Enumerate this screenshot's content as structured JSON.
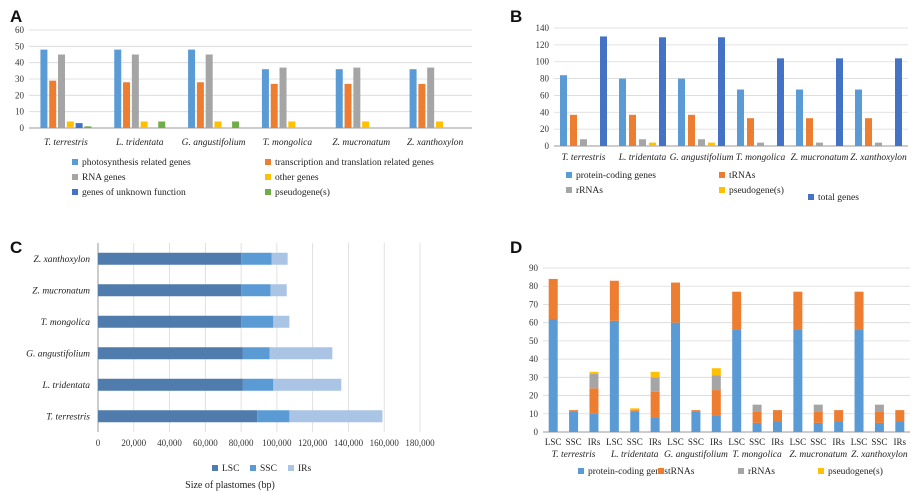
{
  "colors": {
    "blue": "#5b9bd5",
    "orange": "#ed7d31",
    "gray": "#a5a5a5",
    "yellow": "#ffc000",
    "darkblue": "#4472c4",
    "green": "#70ad47",
    "lsc": "#4f7cac",
    "ssc": "#5b9bd5",
    "irs": "#a9c4e4",
    "grid": "#d9d9d9"
  },
  "chart_data": [
    {
      "panel": "A",
      "type": "bar",
      "categories": [
        "T. terrestris",
        "L. tridentata",
        "G. angustifolium",
        "T. mongolica",
        "Z. mucronatum",
        "Z. xanthoxylon"
      ],
      "series": [
        {
          "name": "photosynthesis related genes",
          "color": "#5b9bd5",
          "values": [
            48,
            48,
            48,
            36,
            36,
            36
          ]
        },
        {
          "name": "transcription and translation related genes",
          "color": "#ed7d31",
          "values": [
            29,
            28,
            28,
            27,
            27,
            27
          ]
        },
        {
          "name": "RNA genes",
          "color": "#a5a5a5",
          "values": [
            45,
            45,
            45,
            37,
            37,
            37
          ]
        },
        {
          "name": "other genes",
          "color": "#ffc000",
          "values": [
            4,
            4,
            4,
            4,
            4,
            4
          ]
        },
        {
          "name": "genes of unknown function",
          "color": "#4472c4",
          "values": [
            3,
            0,
            0,
            0,
            0,
            0
          ]
        },
        {
          "name": "pseudogene(s)",
          "color": "#70ad47",
          "values": [
            1,
            4,
            4,
            0,
            0,
            0
          ]
        }
      ],
      "ylim": [
        0,
        60
      ],
      "yticks": [
        "0",
        "10",
        "20",
        "30",
        "40",
        "50",
        "60"
      ],
      "grid": true,
      "legend": "bottom"
    },
    {
      "panel": "B",
      "type": "bar",
      "categories": [
        "T. terrestris",
        "L. tridentata",
        "G. angustifolium",
        "T. mongolica",
        "Z. mucronatum",
        "Z. xanthoxylon"
      ],
      "series": [
        {
          "name": "protein-coding genes",
          "color": "#5b9bd5",
          "values": [
            84,
            80,
            80,
            67,
            67,
            67
          ]
        },
        {
          "name": "tRNAs",
          "color": "#ed7d31",
          "values": [
            37,
            37,
            37,
            33,
            33,
            33
          ]
        },
        {
          "name": "rRNAs",
          "color": "#a5a5a5",
          "values": [
            8,
            8,
            8,
            4,
            4,
            4
          ]
        },
        {
          "name": "pseudogene(s)",
          "color": "#ffc000",
          "values": [
            1,
            4,
            4,
            0,
            0,
            0
          ]
        },
        {
          "name": "total genes",
          "color": "#4472c4",
          "values": [
            130,
            129,
            129,
            104,
            104,
            104
          ]
        }
      ],
      "ylim": [
        0,
        140
      ],
      "yticks": [
        "0",
        "20",
        "40",
        "60",
        "80",
        "100",
        "120",
        "140"
      ],
      "grid": true,
      "legend": "bottom"
    },
    {
      "panel": "C",
      "type": "bar",
      "orientation": "horizontal",
      "stacked": true,
      "categories": [
        "Z. xanthoxylon",
        "Z. mucronatum",
        "T. mongolica",
        "G. angustifolium",
        "L. tridentata",
        "T. terrestris"
      ],
      "series": [
        {
          "name": "LSC",
          "color": "#4f7cac",
          "values": [
            80000,
            80000,
            80000,
            81000,
            81000,
            89000
          ]
        },
        {
          "name": "SSC",
          "color": "#5b9bd5",
          "values": [
            17000,
            16500,
            18000,
            15000,
            17000,
            18000
          ]
        },
        {
          "name": "IRs",
          "color": "#a9c4e4",
          "values": [
            9000,
            9000,
            9000,
            35000,
            38000,
            52000
          ]
        }
      ],
      "xlim": [
        0,
        180000
      ],
      "xticks": [
        "0",
        "20,000",
        "40,000",
        "60,000",
        "80,000",
        "100,000",
        "120,000",
        "140,000",
        "160,000",
        "180,000"
      ],
      "xlabel": "Size of plastomes (bp)",
      "grid": true,
      "legend": "bottom"
    },
    {
      "panel": "D",
      "type": "bar",
      "stacked": true,
      "groups": [
        "T. terrestris",
        "L. tridentata",
        "G. angustifolium",
        "T. mongolica",
        "Z. mucronatum",
        "Z. xanthoxylon"
      ],
      "subcategories": [
        "LSC",
        "SSC",
        "IRs"
      ],
      "series": [
        {
          "name": "protein-coding genes",
          "color": "#5b9bd5",
          "values": [
            [
              62,
              11,
              10
            ],
            [
              61,
              11,
              8
            ],
            [
              60,
              11,
              9
            ],
            [
              56,
              5,
              6
            ],
            [
              56,
              5,
              6
            ],
            [
              56,
              5,
              6
            ]
          ]
        },
        {
          "name": "tRNAs",
          "color": "#ed7d31",
          "values": [
            [
              22,
              1,
              14
            ],
            [
              22,
              1,
              14
            ],
            [
              22,
              1,
              14
            ],
            [
              21,
              6,
              6
            ],
            [
              21,
              6,
              6
            ],
            [
              21,
              6,
              6
            ]
          ]
        },
        {
          "name": "rRNAs",
          "color": "#a5a5a5",
          "values": [
            [
              0,
              0,
              8
            ],
            [
              0,
              0,
              8
            ],
            [
              0,
              0,
              8
            ],
            [
              0,
              4,
              0
            ],
            [
              0,
              4,
              0
            ],
            [
              0,
              4,
              0
            ]
          ]
        },
        {
          "name": "pseudogene(s)",
          "color": "#ffc000",
          "values": [
            [
              0,
              0,
              1
            ],
            [
              0,
              1,
              3
            ],
            [
              0,
              0,
              4
            ],
            [
              0,
              0,
              0
            ],
            [
              0,
              0,
              0
            ],
            [
              0,
              0,
              0
            ]
          ]
        }
      ],
      "ylim": [
        0,
        90
      ],
      "yticks": [
        "0",
        "10",
        "20",
        "30",
        "40",
        "50",
        "60",
        "70",
        "80",
        "90"
      ],
      "grid": true,
      "legend": "bottom"
    }
  ]
}
